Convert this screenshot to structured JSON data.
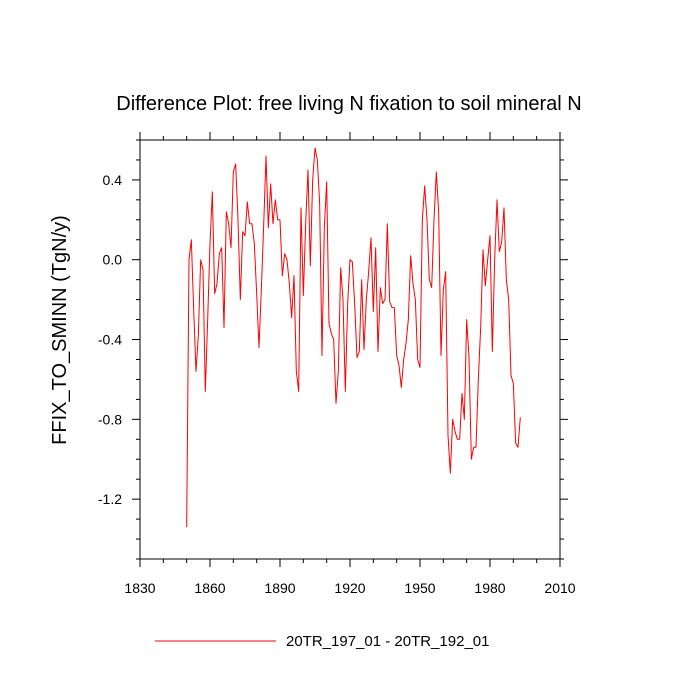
{
  "chart_data": {
    "type": "line",
    "title": "Difference Plot: free living N fixation to soil mineral N",
    "xlabel": "",
    "ylabel": "FFIX_TO_SMINN  (TgN/y)",
    "xlim": [
      1830,
      2010
    ],
    "ylim": [
      -1.5,
      0.6
    ],
    "xticks": [
      1830,
      1860,
      1890,
      1920,
      1950,
      1980,
      2010
    ],
    "xtick_labels": [
      "1830",
      "1860",
      "1890",
      "1920",
      "1950",
      "1980",
      "2010"
    ],
    "yticks": [
      -1.2,
      -0.8,
      -0.4,
      0.0,
      0.4
    ],
    "ytick_labels": [
      "-1.2",
      "-0.8",
      "-0.4",
      "0.0",
      "0.4"
    ],
    "line_color": "#ff0000",
    "series": [
      {
        "name": "20TR_197_01 - 20TR_192_01",
        "x_start": 1850,
        "values": [
          -1.34,
          0.0,
          0.1,
          -0.25,
          -0.56,
          -0.38,
          0.0,
          -0.05,
          -0.66,
          -0.3,
          0.08,
          0.34,
          -0.17,
          -0.12,
          0.03,
          0.06,
          -0.34,
          0.24,
          0.18,
          0.06,
          0.44,
          0.48,
          0.2,
          -0.2,
          0.14,
          0.12,
          0.29,
          0.18,
          0.18,
          0.08,
          -0.17,
          -0.44,
          -0.15,
          0.17,
          0.52,
          0.16,
          0.38,
          0.18,
          0.3,
          0.2,
          0.2,
          -0.08,
          0.03,
          0.0,
          -0.12,
          -0.29,
          -0.08,
          -0.56,
          -0.66,
          0.26,
          -0.18,
          0.18,
          0.45,
          -0.03,
          0.4,
          0.56,
          0.5,
          0.28,
          -0.48,
          0.16,
          0.39,
          -0.32,
          -0.37,
          -0.4,
          -0.72,
          -0.56,
          -0.04,
          -0.2,
          -0.66,
          -0.22,
          0.0,
          -0.01,
          -0.22,
          -0.49,
          -0.46,
          -0.1,
          -0.45,
          -0.2,
          -0.06,
          0.11,
          -0.26,
          0.06,
          -0.46,
          -0.14,
          -0.22,
          -0.2,
          0.18,
          -0.21,
          -0.24,
          -0.24,
          -0.48,
          -0.53,
          -0.64,
          -0.5,
          -0.42,
          -0.3,
          0.02,
          -0.12,
          -0.2,
          -0.5,
          -0.54,
          0.2,
          0.37,
          0.2,
          -0.1,
          -0.14,
          0.2,
          0.44,
          0.24,
          -0.48,
          -0.15,
          -0.06,
          -0.88,
          -1.07,
          -0.8,
          -0.86,
          -0.9,
          -0.9,
          -0.67,
          -0.8,
          -0.3,
          -0.49,
          -1.0,
          -0.94,
          -0.94,
          -0.6,
          -0.34,
          0.05,
          -0.13,
          0.0,
          0.12,
          -0.46,
          0.0,
          0.3,
          0.04,
          0.09,
          0.26,
          -0.1,
          -0.2,
          -0.58,
          -0.62,
          -0.92,
          -0.94,
          -0.79
        ]
      }
    ]
  }
}
